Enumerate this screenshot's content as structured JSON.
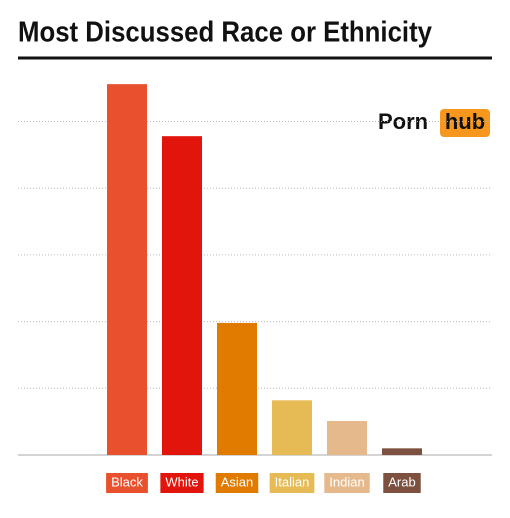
{
  "chart_data": {
    "type": "bar",
    "title": "Most Discussed Race or Ethnicity",
    "logo_text": "Porn",
    "logo_badge": "hub",
    "categories": [
      "Black",
      "White",
      "Asian",
      "Italian",
      "Indian",
      "Arab"
    ],
    "values": [
      5.56,
      4.78,
      1.98,
      0.82,
      0.51,
      0.1
    ],
    "colors": [
      "#e8502e",
      "#e2150c",
      "#e07b00",
      "#e6bb55",
      "#e6b98c",
      "#7d5040"
    ],
    "ylim": [
      0,
      6
    ],
    "yticks": [
      0,
      1,
      2,
      3,
      4,
      5
    ],
    "grid": true
  }
}
